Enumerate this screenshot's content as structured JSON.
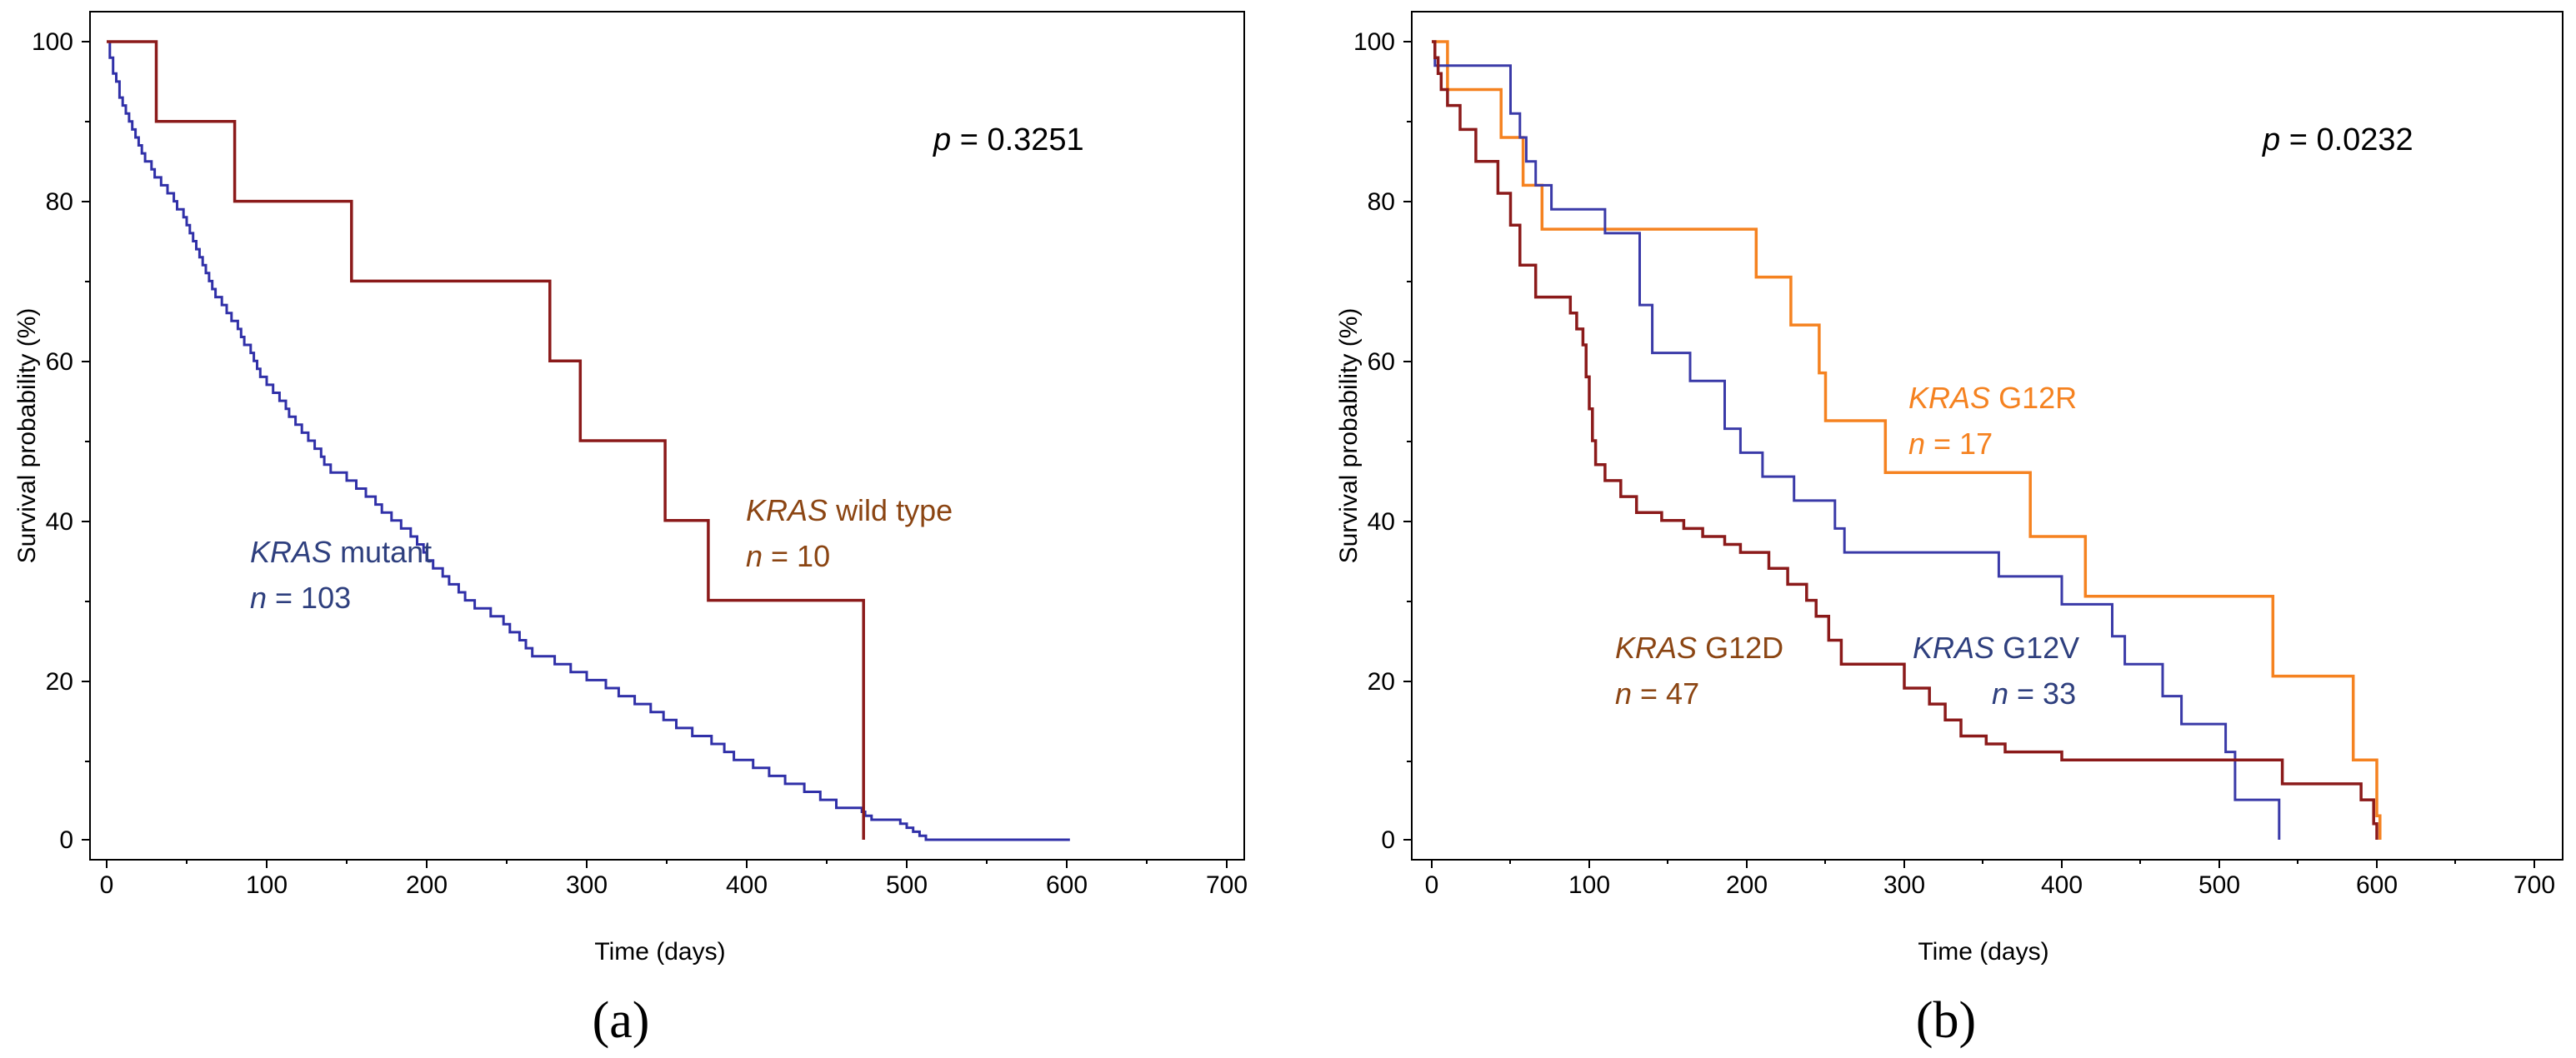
{
  "chart_data": [
    {
      "panel_label": "(a)",
      "type": "line",
      "xlabel": "Time (days)",
      "ylabel": "Survival probability (%)",
      "xlim": [
        0,
        700
      ],
      "ylim": [
        0,
        100
      ],
      "xticks": [
        "0",
        "100",
        "200",
        "300",
        "400",
        "500",
        "600",
        "700"
      ],
      "yticks": [
        "0",
        "20",
        "40",
        "60",
        "80",
        "100"
      ],
      "p_value": {
        "label": "p",
        "text": " = 0.3251"
      },
      "series": [
        {
          "name": "KRAS mutant",
          "gene": "KRAS",
          "variant": "mutant",
          "n_label": "n",
          "n_text": " = 103",
          "color": "#3030a8",
          "x": [
            0,
            2,
            4,
            6,
            8,
            10,
            12,
            14,
            16,
            18,
            20,
            22,
            24,
            28,
            30,
            34,
            38,
            42,
            44,
            48,
            50,
            52,
            54,
            56,
            58,
            60,
            62,
            64,
            66,
            68,
            72,
            75,
            78,
            82,
            84,
            86,
            90,
            92,
            94,
            96,
            100,
            104,
            108,
            112,
            114,
            118,
            122,
            126,
            130,
            134,
            136,
            140,
            150,
            156,
            162,
            168,
            172,
            178,
            184,
            190,
            194,
            198,
            200,
            204,
            210,
            214,
            220,
            224,
            230,
            240,
            248,
            252,
            258,
            262,
            266,
            280,
            290,
            300,
            312,
            320,
            330,
            340,
            348,
            356,
            366,
            378,
            386,
            392,
            404,
            414,
            424,
            436,
            446,
            456,
            472,
            474,
            478,
            496,
            500,
            504,
            508,
            512,
            530,
            550,
            558,
            590,
            596,
            600,
            602
          ],
          "y": [
            100,
            98,
            96,
            95,
            93,
            92,
            91,
            90,
            89,
            88,
            87,
            86,
            85,
            84,
            83,
            82,
            81,
            80,
            79,
            78,
            77,
            76,
            75,
            74,
            73,
            72,
            71,
            70,
            69,
            68,
            67,
            66,
            65,
            64,
            63,
            62,
            61,
            60,
            59,
            58,
            57,
            56,
            55,
            54,
            53,
            52,
            51,
            50,
            49,
            48,
            47,
            46,
            45,
            44,
            43,
            42,
            41,
            40,
            39,
            38,
            37,
            36,
            35,
            34,
            33,
            32,
            31,
            30,
            29,
            28,
            27,
            26,
            25,
            24,
            23,
            22,
            21,
            20,
            19,
            18,
            17,
            16,
            15,
            14,
            13,
            12,
            11,
            10,
            9,
            8,
            7,
            6,
            5,
            4,
            3.5,
            3,
            2.5,
            2,
            1.5,
            1,
            0.5,
            0,
            0,
            0,
            0,
            0,
            0,
            0,
            0
          ],
          "note": "stair-step survival curve"
        },
        {
          "name": "KRAS wild type",
          "gene": "KRAS",
          "variant": "wild type",
          "n_label": "n",
          "n_text": " = 10",
          "color": "#8b1a1a",
          "x": [
            0,
            31,
            80,
            153,
            277,
            296,
            349,
            376,
            473,
            473
          ],
          "y": [
            100,
            90,
            80,
            70,
            60,
            50,
            40,
            30,
            30,
            0
          ]
        }
      ]
    },
    {
      "panel_label": "(b)",
      "type": "line",
      "xlabel": "Time (days)",
      "ylabel": "Survival probability (%)",
      "xlim": [
        0,
        700
      ],
      "ylim": [
        0,
        100
      ],
      "xticks": [
        "0",
        "100",
        "200",
        "300",
        "400",
        "500",
        "600",
        "700"
      ],
      "yticks": [
        "0",
        "20",
        "40",
        "60",
        "80",
        "100"
      ],
      "p_value": {
        "label": "p",
        "text": " = 0.0232"
      },
      "series": [
        {
          "name": "KRAS G12R",
          "gene": "KRAS",
          "variant": "G12R",
          "n_label": "n",
          "n_text": " = 17",
          "color": "#f58220",
          "x": [
            0,
            10,
            44,
            58,
            70,
            206,
            228,
            246,
            250,
            288,
            380,
            415,
            534,
            585,
            600,
            602
          ],
          "y": [
            100,
            94,
            88,
            82,
            76.5,
            70.5,
            64.5,
            58.5,
            52.5,
            46,
            38,
            30.5,
            20.5,
            10,
            3,
            0
          ]
        },
        {
          "name": "KRAS G12V",
          "gene": "KRAS",
          "variant": "G12V",
          "n_label": "n",
          "n_text": " = 33",
          "color": "#3a3aa8",
          "x": [
            0,
            2,
            4,
            44,
            50,
            56,
            60,
            66,
            76,
            110,
            132,
            140,
            164,
            186,
            196,
            210,
            230,
            256,
            262,
            270,
            360,
            400,
            432,
            440,
            464,
            476,
            504,
            510,
            538
          ],
          "y": [
            100,
            97,
            97,
            97,
            91,
            88,
            85,
            82,
            79,
            76,
            67,
            61,
            57.5,
            51.5,
            48.5,
            45.5,
            42.5,
            39,
            36,
            36,
            33,
            29.5,
            25.5,
            22,
            18,
            14.5,
            11,
            5,
            0
          ]
        },
        {
          "name": "KRAS G12D",
          "gene": "KRAS",
          "variant": "G12D",
          "n_label": "n",
          "n_text": " = 47",
          "color": "#8b1a1a",
          "x": [
            0,
            2,
            4,
            6,
            10,
            18,
            28,
            42,
            50,
            56,
            66,
            88,
            92,
            96,
            98,
            100,
            102,
            104,
            110,
            120,
            130,
            146,
            160,
            172,
            186,
            196,
            214,
            226,
            238,
            244,
            252,
            260,
            300,
            316,
            326,
            336,
            352,
            364,
            400,
            420,
            480,
            500,
            520,
            540,
            560,
            580,
            590,
            598,
            600
          ],
          "y": [
            100,
            98,
            96,
            94,
            92,
            89,
            85,
            81,
            77,
            72,
            68,
            66,
            64,
            62,
            58,
            54,
            50,
            47,
            45,
            43,
            41,
            40,
            39,
            38,
            37,
            36,
            34,
            32,
            30,
            28,
            25,
            22,
            19,
            17,
            15,
            13,
            12,
            11,
            10,
            10,
            10,
            10,
            10,
            7,
            7,
            7,
            5,
            2,
            0
          ]
        }
      ]
    }
  ]
}
